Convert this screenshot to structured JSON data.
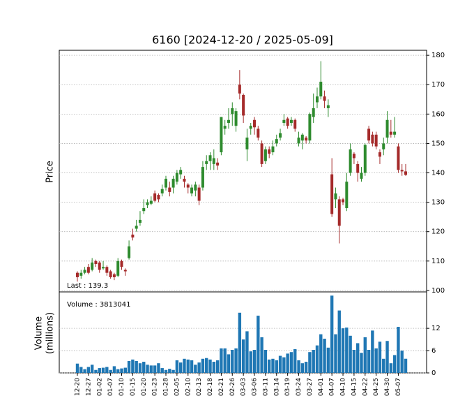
{
  "chart_data": {
    "type": "candlestick",
    "title": "6160   [2024-12-20 / 2025-05-09]",
    "ylabel": "Price",
    "annotation": "Last : 139.3",
    "categories": [
      "12-20",
      null,
      null,
      "12-27",
      null,
      null,
      "01-02",
      null,
      null,
      "01-07",
      null,
      null,
      "01-10",
      null,
      null,
      "01-15",
      null,
      null,
      "01-20",
      null,
      null,
      "01-23",
      null,
      null,
      "01-28",
      null,
      null,
      "02-05",
      null,
      null,
      "02-10",
      null,
      null,
      "02-13",
      null,
      null,
      "02-18",
      null,
      null,
      "02-21",
      null,
      null,
      "02-26",
      null,
      null,
      "03-03",
      null,
      null,
      "03-06",
      null,
      null,
      "03-11",
      null,
      null,
      "03-14",
      null,
      null,
      "03-19",
      null,
      null,
      "03-24",
      null,
      null,
      "03-27",
      null,
      null,
      "04-01",
      null,
      null,
      "04-07",
      null,
      null,
      "04-10",
      null,
      null,
      "04-15",
      null,
      null,
      "04-22",
      null,
      null,
      "04-25",
      null,
      null,
      "04-30",
      null,
      null,
      "05-07",
      null,
      null
    ],
    "open": [
      106,
      105,
      106,
      108,
      107,
      110,
      109.5,
      107.5,
      108,
      106.5,
      105.5,
      105,
      110,
      107,
      111,
      119,
      121,
      123,
      127,
      129,
      129.5,
      133,
      132.5,
      133,
      135,
      135,
      135,
      137,
      139.5,
      138,
      136,
      133,
      134,
      135,
      135,
      143,
      144,
      143,
      143.5,
      147,
      155,
      157,
      160,
      156,
      170,
      166.5,
      148,
      155,
      158,
      155,
      150,
      144,
      148,
      147,
      150,
      152,
      157,
      158.5,
      157,
      158,
      150,
      151,
      152,
      151,
      159,
      164,
      166,
      166,
      162,
      139.5,
      131,
      131,
      131,
      128,
      140,
      146.5,
      143,
      138,
      140,
      155,
      153,
      153,
      147,
      148,
      152,
      154,
      153,
      149,
      141,
      140.5
    ],
    "high": [
      106.5,
      107,
      108,
      109,
      111,
      110.5,
      110,
      110,
      108.5,
      107,
      106,
      111,
      110.5,
      107.5,
      117,
      121,
      124,
      127,
      131,
      131,
      132,
      134,
      133,
      136,
      139,
      137,
      139,
      141,
      142,
      139,
      136.5,
      136,
      137,
      136,
      144,
      146,
      147,
      148,
      145,
      159,
      158,
      162,
      164,
      162,
      175,
      167,
      155,
      157,
      159,
      156,
      151,
      149,
      149,
      151,
      153,
      155,
      160,
      159,
      159,
      158.5,
      154,
      153.5,
      152.5,
      160.5,
      167,
      169,
      178,
      168,
      165,
      145,
      135,
      132,
      131.5,
      140,
      150,
      147,
      144,
      142,
      150,
      156,
      154,
      154,
      148,
      152,
      161,
      158,
      159,
      150,
      143,
      143
    ],
    "low": [
      103,
      104,
      105.5,
      105.5,
      106.5,
      108,
      106,
      107,
      105,
      104,
      103.5,
      104.5,
      107,
      105,
      110.5,
      117,
      120,
      122,
      126,
      128,
      129,
      130,
      130,
      132,
      134,
      132,
      133,
      136,
      138,
      135,
      133,
      132,
      132,
      129,
      134,
      141,
      141,
      141,
      141,
      146,
      153,
      155,
      156,
      154,
      165,
      157,
      144,
      153,
      153,
      151,
      142,
      143,
      145,
      146,
      149,
      151,
      156,
      155,
      156,
      154,
      149,
      148,
      150,
      150,
      157,
      162,
      165,
      162,
      159,
      125,
      128,
      116,
      129,
      127,
      139,
      143,
      137,
      137,
      139,
      150,
      149,
      148,
      143,
      146,
      150,
      152,
      152,
      140,
      139,
      139
    ],
    "close": [
      104.5,
      106,
      107,
      106,
      109.5,
      109,
      107,
      108,
      106,
      104.5,
      104.5,
      110,
      108,
      106.5,
      115,
      118,
      122,
      124,
      128,
      130,
      130.5,
      130.5,
      131,
      134.5,
      138,
      133.5,
      138,
      140,
      141,
      137,
      135,
      135,
      136,
      130.5,
      142,
      144,
      146,
      145,
      142.5,
      159,
      156,
      158,
      162,
      161,
      167,
      159.5,
      152,
      156,
      155.5,
      152,
      143,
      148,
      146.5,
      149,
      151.5,
      153.5,
      158,
      156,
      158,
      155,
      152,
      153,
      151,
      160,
      162,
      166,
      171,
      164.5,
      163,
      126,
      133,
      122,
      130,
      137,
      148,
      145,
      140,
      140,
      149.5,
      151,
      150,
      149,
      145.5,
      150,
      158,
      153,
      154,
      141,
      140.5,
      139.3
    ],
    "up_color": "#2e8b2e",
    "down_color": "#a52a2a",
    "ylim": [
      99.5,
      181.7
    ],
    "yticks": [
      100,
      110,
      120,
      130,
      140,
      150,
      160,
      170,
      180
    ],
    "grid": true,
    "volume": {
      "ylabel": [
        "Volume",
        "(millions)"
      ],
      "annotation": "Volume : 3813041",
      "values": [
        2.5,
        1.6,
        1.0,
        1.6,
        2.2,
        0.8,
        1.3,
        1.4,
        1.6,
        0.8,
        1.8,
        1.0,
        1.2,
        1.4,
        3.2,
        3.6,
        3.2,
        2.6,
        3.0,
        2.2,
        2.0,
        2.0,
        2.6,
        1.3,
        0.8,
        1.1,
        0.8,
        3.4,
        2.8,
        3.8,
        3.6,
        3.4,
        2.2,
        2.8,
        3.8,
        4.0,
        3.6,
        3.0,
        3.4,
        6.6,
        6.6,
        5.0,
        6.2,
        6.6,
        16.2,
        9.0,
        11.2,
        5.8,
        6.2,
        15.4,
        9.6,
        6.2,
        3.6,
        3.8,
        3.4,
        4.6,
        4.2,
        5.2,
        5.6,
        6.4,
        3.4,
        2.6,
        3.0,
        5.6,
        6.2,
        7.4,
        10.4,
        9.2,
        6.8,
        20.8,
        10.4,
        16.8,
        12.0,
        12.2,
        10.0,
        6.2,
        8.0,
        5.4,
        9.6,
        6.2,
        11.4,
        6.6,
        8.4,
        3.8,
        8.6,
        2.6,
        4.8,
        12.4,
        6.0,
        3.81
      ],
      "color": "#1f77b4",
      "ylim": [
        0,
        21.8
      ],
      "yticks": [
        0,
        6,
        12
      ]
    }
  }
}
